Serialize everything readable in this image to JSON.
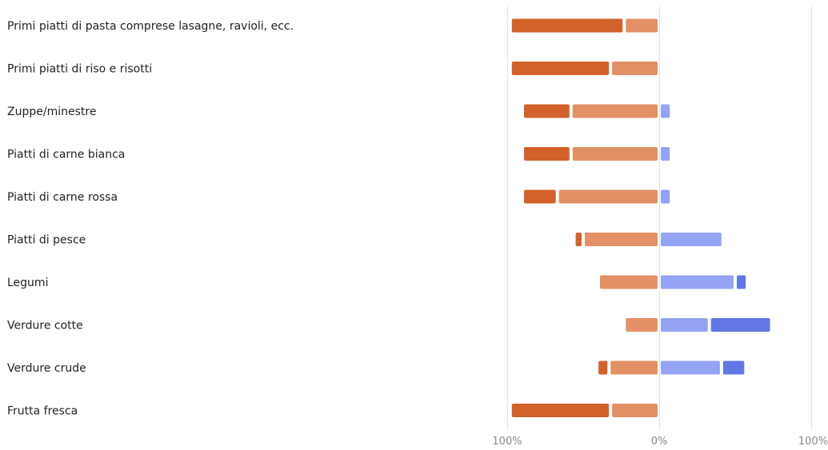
{
  "chart_data": {
    "type": "bar",
    "orientation": "horizontal",
    "stacking": "diverging",
    "title": "",
    "xlabel": "",
    "ylabel": "",
    "xlim": [
      -100,
      100
    ],
    "grid": true,
    "legend": "none",
    "categories": [
      "Primi piatti di pasta comprese lasagne, ravioli, ecc.",
      "Primi piatti di riso e risotti",
      "Zuppe/minestre",
      "Piatti di carne bianca",
      "Piatti di carne rossa",
      "Piatti di pesce",
      "Legumi",
      "Verdure cotte",
      "Verdure crude",
      "Frutta fresca"
    ],
    "x_tick_labels": [
      "100%",
      "0%",
      "100%"
    ],
    "x_tick_values": [
      -100,
      0,
      100
    ],
    "series": [
      {
        "side": "negative",
        "color": "#d2622a",
        "values": [
          75,
          66,
          32,
          32,
          23,
          6,
          0,
          0,
          8,
          66
        ]
      },
      {
        "side": "negative",
        "color": "#e39066",
        "values": [
          23,
          32,
          58,
          58,
          67,
          50,
          40,
          23,
          33,
          32
        ]
      },
      {
        "side": "positive",
        "color": "#94a3f2",
        "values": [
          0,
          0,
          8,
          8,
          8,
          42,
          50,
          33,
          41,
          0
        ]
      },
      {
        "side": "positive",
        "color": "#6277e5",
        "values": [
          0,
          0,
          0,
          0,
          0,
          0,
          8,
          41,
          16,
          0
        ]
      }
    ]
  }
}
